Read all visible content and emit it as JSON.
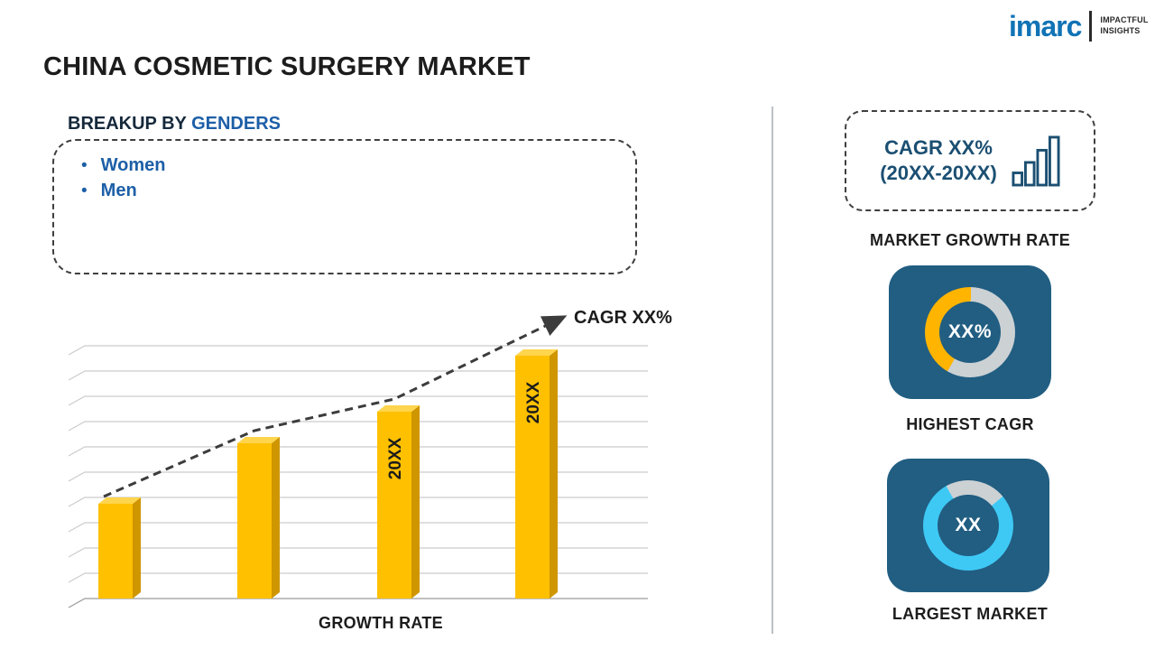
{
  "logo": {
    "brand": "imarc",
    "tagline": [
      "IMPACTFUL",
      "INSIGHTS"
    ]
  },
  "page_title": "CHINA COSMETIC SURGERY MARKET",
  "breakup": {
    "heading_prefix": "BREAKUP BY ",
    "heading_highlight": "GENDERS",
    "items": [
      "Women",
      "Men"
    ]
  },
  "chart_data": {
    "type": "bar",
    "categories": [
      "",
      "",
      "20XX",
      "20XX"
    ],
    "values": [
      27,
      44,
      53,
      69
    ],
    "title": "",
    "xlabel": "GROWTH RATE",
    "ylabel": "",
    "ylim": [
      0,
      80
    ],
    "grid": true,
    "annotation": "CAGR XX%",
    "trend": "dashed-arrow-up",
    "bar_color": "#ffc000",
    "bar_side_color": "#cf9600",
    "bar_top_color": "#ffd54d"
  },
  "sidebar": {
    "growth_card": {
      "line1": "CAGR XX%",
      "line2": "(20XX-20XX)",
      "caption": "MARKET GROWTH RATE"
    },
    "highest_cagr": {
      "value": "XX%",
      "caption": "HIGHEST CAGR",
      "arc_color": "#ffb400",
      "arc_percent": 42,
      "arc_start": 210
    },
    "largest_market": {
      "value": "XX",
      "caption": "LARGEST MARKET",
      "arc_color": "#3ec9f5",
      "arc_percent": 78,
      "arc_start": 50
    }
  },
  "colors": {
    "imarc_blue": "#1173b5",
    "navy": "#1b4f72",
    "blue_text": "#1d5fa7",
    "tile_bg": "#215e82",
    "ring_gray": "#ccd1d4"
  }
}
